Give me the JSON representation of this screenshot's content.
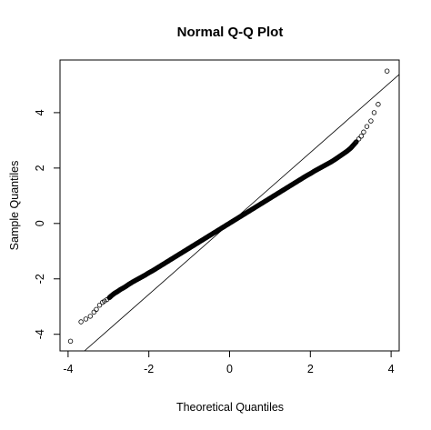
{
  "chart_data": {
    "type": "scatter",
    "title": "Normal Q-Q Plot",
    "xlabel": "Theoretical Quantiles",
    "ylabel": "Sample Quantiles",
    "xlim": [
      -4.2,
      4.2
    ],
    "ylim": [
      -4.6,
      5.9
    ],
    "x_ticks": [
      -4,
      -2,
      0,
      2,
      4
    ],
    "x_tick_labels": [
      "-4",
      "-2",
      "0",
      "2",
      "4"
    ],
    "y_ticks": [
      -4,
      -2,
      0,
      2,
      4
    ],
    "y_tick_labels": [
      "-4",
      "-2",
      "0",
      "2",
      "4"
    ],
    "grid": false,
    "legend": "none",
    "marker": "open-circle",
    "reference_line": {
      "intercept": 0,
      "slope": 1.28
    },
    "points": [
      [
        -3.94,
        -4.25
      ],
      [
        -3.68,
        -3.55
      ],
      [
        -3.56,
        -3.45
      ],
      [
        -3.45,
        -3.35
      ],
      [
        -3.36,
        -3.2
      ],
      [
        -3.3,
        -3.1
      ],
      [
        -3.22,
        -2.95
      ],
      [
        -3.15,
        -2.85
      ],
      [
        -3.1,
        -2.8
      ],
      [
        -3.04,
        -2.75
      ],
      [
        -2.98,
        -2.68
      ],
      [
        -2.92,
        -2.6
      ],
      [
        -2.85,
        -2.52
      ],
      [
        -2.78,
        -2.46
      ],
      [
        -2.7,
        -2.38
      ],
      [
        -2.6,
        -2.3
      ],
      [
        -2.5,
        -2.2
      ],
      [
        -2.4,
        -2.11
      ],
      [
        -2.3,
        -2.03
      ],
      [
        -2.2,
        -1.95
      ],
      [
        -2.1,
        -1.87
      ],
      [
        -2.0,
        -1.78
      ],
      [
        -1.9,
        -1.7
      ],
      [
        -1.8,
        -1.61
      ],
      [
        -1.7,
        -1.52
      ],
      [
        -1.6,
        -1.43
      ],
      [
        -1.5,
        -1.34
      ],
      [
        -1.4,
        -1.25
      ],
      [
        -1.3,
        -1.16
      ],
      [
        -1.2,
        -1.07
      ],
      [
        -1.1,
        -0.98
      ],
      [
        -1.0,
        -0.89
      ],
      [
        -0.9,
        -0.8
      ],
      [
        -0.8,
        -0.71
      ],
      [
        -0.7,
        -0.62
      ],
      [
        -0.6,
        -0.53
      ],
      [
        -0.5,
        -0.44
      ],
      [
        -0.4,
        -0.35
      ],
      [
        -0.3,
        -0.26
      ],
      [
        -0.2,
        -0.17
      ],
      [
        -0.1,
        -0.08
      ],
      [
        0.0,
        0.01
      ],
      [
        0.1,
        0.1
      ],
      [
        0.2,
        0.19
      ],
      [
        0.3,
        0.28
      ],
      [
        0.4,
        0.37
      ],
      [
        0.5,
        0.46
      ],
      [
        0.6,
        0.55
      ],
      [
        0.7,
        0.64
      ],
      [
        0.8,
        0.73
      ],
      [
        0.9,
        0.82
      ],
      [
        1.0,
        0.91
      ],
      [
        1.1,
        1.0
      ],
      [
        1.2,
        1.09
      ],
      [
        1.3,
        1.18
      ],
      [
        1.4,
        1.27
      ],
      [
        1.5,
        1.36
      ],
      [
        1.6,
        1.45
      ],
      [
        1.7,
        1.54
      ],
      [
        1.8,
        1.63
      ],
      [
        1.9,
        1.72
      ],
      [
        2.0,
        1.8
      ],
      [
        2.1,
        1.89
      ],
      [
        2.2,
        1.97
      ],
      [
        2.3,
        2.05
      ],
      [
        2.4,
        2.13
      ],
      [
        2.5,
        2.21
      ],
      [
        2.6,
        2.3
      ],
      [
        2.7,
        2.4
      ],
      [
        2.8,
        2.5
      ],
      [
        2.9,
        2.6
      ],
      [
        3.0,
        2.72
      ],
      [
        3.08,
        2.85
      ],
      [
        3.14,
        2.95
      ],
      [
        3.2,
        3.05
      ],
      [
        3.26,
        3.15
      ],
      [
        3.32,
        3.3
      ],
      [
        3.4,
        3.5
      ],
      [
        3.5,
        3.7
      ],
      [
        3.58,
        4.0
      ],
      [
        3.68,
        4.3
      ],
      [
        3.9,
        5.5
      ]
    ]
  }
}
